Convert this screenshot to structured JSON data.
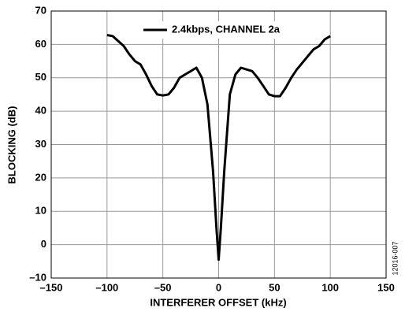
{
  "chart_data": {
    "type": "line",
    "xlabel": "INTERFERER OFFSET (kHz)",
    "ylabel": "BLOCKING (dB)",
    "figure_id": "12016-007",
    "grid": true,
    "legend": "top-center",
    "xlim": [
      -150,
      150
    ],
    "xticks": [
      {
        "value": -150,
        "label": "–150"
      },
      {
        "value": -100,
        "label": "–100"
      },
      {
        "value": -50,
        "label": "–50"
      },
      0,
      50,
      100,
      150
    ],
    "ylim": [
      -10,
      70
    ],
    "yticks": [
      {
        "value": -10,
        "label": "–10"
      },
      0,
      10,
      20,
      30,
      40,
      50,
      60,
      70
    ],
    "series": [
      {
        "name": "2.4kbps, CHANNEL 2a",
        "color": "#000000",
        "x": [
          -100,
          -95,
          -90,
          -85,
          -80,
          -75,
          -70,
          -65,
          -60,
          -55,
          -50,
          -45,
          -40,
          -35,
          -30,
          -25,
          -20,
          -15,
          -10,
          -5,
          -2,
          0,
          2,
          5,
          10,
          15,
          20,
          25,
          30,
          35,
          40,
          45,
          50,
          55,
          60,
          65,
          70,
          75,
          80,
          85,
          90,
          95,
          100
        ],
        "values": [
          62.8,
          62.5,
          61,
          59.5,
          57,
          55,
          54,
          51,
          47.5,
          45,
          44.7,
          45,
          47,
          50,
          51,
          52,
          53,
          50,
          42,
          22,
          5,
          -4.5,
          5,
          22,
          45,
          51,
          53,
          52.5,
          52,
          50,
          47.5,
          45,
          44.5,
          44.5,
          47,
          50,
          52.5,
          54.5,
          56.5,
          58.5,
          59.5,
          61.5,
          62.5
        ]
      }
    ]
  }
}
